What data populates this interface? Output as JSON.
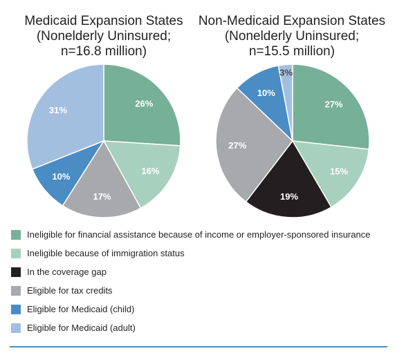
{
  "colors": {
    "ineligible_income": "#76b096",
    "ineligible_immigration": "#a8d0bf",
    "coverage_gap": "#231f20",
    "tax_credits": "#a7a9ac",
    "medicaid_child": "#4a8cc4",
    "medicaid_adult": "#a3bfe0"
  },
  "legend": [
    {
      "label": "Ineligible for financial assistance because of income or employer-sponsored insurance",
      "color": "#76b096"
    },
    {
      "label": "Ineligible because of immigration status",
      "color": "#a8d0bf"
    },
    {
      "label": "In the coverage gap",
      "color": "#231f20"
    },
    {
      "label": "Eligible for tax credits",
      "color": "#a7a9ac"
    },
    {
      "label": "Eligible for Medicaid (child)",
      "color": "#4a8cc4"
    },
    {
      "label": "Eligible for Medicaid (adult)",
      "color": "#a3bfe0"
    }
  ],
  "chart_data": [
    {
      "type": "pie",
      "title_lines": [
        "Medicaid Expansion States",
        "(Nonelderly Uninsured;",
        "n=16.8 million)"
      ],
      "slices": [
        {
          "category": "Ineligible for financial assistance because of income or employer-sponsored insurance",
          "value": 26,
          "label": "26%",
          "color": "#76b096"
        },
        {
          "category": "Ineligible because of immigration status",
          "value": 16,
          "label": "16%",
          "color": "#a8d0bf"
        },
        {
          "category": "Eligible for tax credits",
          "value": 17,
          "label": "17%",
          "color": "#a7a9ac"
        },
        {
          "category": "Eligible for Medicaid (child)",
          "value": 10,
          "label": "10%",
          "color": "#4a8cc4"
        },
        {
          "category": "Eligible for Medicaid (adult)",
          "value": 31,
          "label": "31%",
          "color": "#a3bfe0"
        }
      ]
    },
    {
      "type": "pie",
      "title_lines": [
        "Non-Medicaid Expansion States",
        "(Nonelderly Uninsured;",
        "n=15.5 million)"
      ],
      "slices": [
        {
          "category": "Ineligible for financial assistance because of income or employer-sponsored insurance",
          "value": 27,
          "label": "27%",
          "color": "#76b096"
        },
        {
          "category": "Ineligible because of immigration status",
          "value": 15,
          "label": "15%",
          "color": "#a8d0bf"
        },
        {
          "category": "In the coverage gap",
          "value": 19,
          "label": "19%",
          "color": "#231f20"
        },
        {
          "category": "Eligible for tax credits",
          "value": 27,
          "label": "27%",
          "color": "#a7a9ac"
        },
        {
          "category": "Eligible for Medicaid (child)",
          "value": 10,
          "label": "10%",
          "color": "#4a8cc4"
        },
        {
          "category": "Eligible for Medicaid (adult)",
          "value": 3,
          "label": "3%",
          "color": "#a3bfe0"
        }
      ]
    }
  ]
}
